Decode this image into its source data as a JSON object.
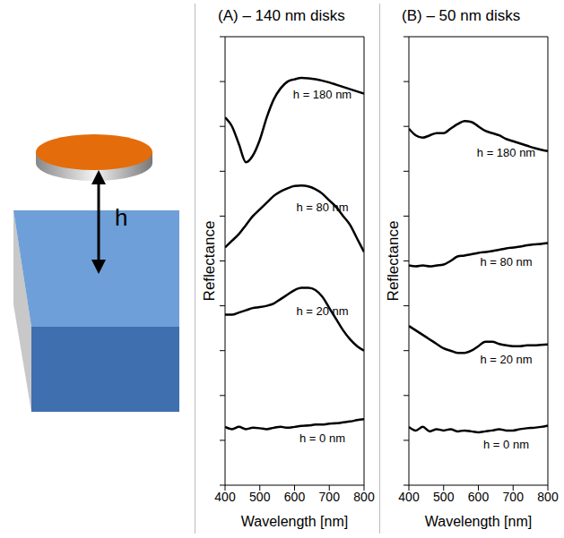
{
  "schematic": {
    "label": "h"
  },
  "chart_data": [
    {
      "type": "line",
      "title": "(A) – 140 nm disks",
      "x_label": "Wavelength [nm]",
      "y_label": "Reflectance",
      "x": [
        400,
        420,
        440,
        460,
        480,
        500,
        520,
        540,
        560,
        580,
        600,
        620,
        640,
        660,
        680,
        700,
        720,
        740,
        760,
        780,
        800
      ],
      "series": [
        {
          "name": "h = 180 nm",
          "color": "#000000",
          "values": [
            8.2,
            8.0,
            7.6,
            7.2,
            7.35,
            7.7,
            8.2,
            8.6,
            8.85,
            9.0,
            9.05,
            9.08,
            9.07,
            9.05,
            9.02,
            8.98,
            8.93,
            8.88,
            8.83,
            8.78,
            8.73
          ]
        },
        {
          "name": "h = 80 nm",
          "color": "#000000",
          "values": [
            5.3,
            5.45,
            5.6,
            5.8,
            6.0,
            6.15,
            6.3,
            6.45,
            6.55,
            6.62,
            6.67,
            6.68,
            6.66,
            6.6,
            6.5,
            6.35,
            6.2,
            6.0,
            5.8,
            5.5,
            5.2
          ]
        },
        {
          "name": "h = 20 nm",
          "color": "#000000",
          "values": [
            3.8,
            3.8,
            3.85,
            3.9,
            3.95,
            3.97,
            4.0,
            4.05,
            4.15,
            4.25,
            4.35,
            4.4,
            4.4,
            4.35,
            4.2,
            3.95,
            3.7,
            3.45,
            3.25,
            3.1,
            3.0
          ]
        },
        {
          "name": "h = 0 nm",
          "color": "#000000",
          "values": [
            1.3,
            1.25,
            1.3,
            1.25,
            1.28,
            1.27,
            1.25,
            1.28,
            1.3,
            1.28,
            1.3,
            1.32,
            1.33,
            1.35,
            1.35,
            1.37,
            1.38,
            1.4,
            1.42,
            1.45,
            1.47
          ]
        }
      ],
      "xlim": [
        400,
        800
      ],
      "xticks": [
        400,
        500,
        600,
        700,
        800
      ],
      "ylim": [
        0,
        10
      ],
      "yticks": [
        0,
        1,
        2,
        3,
        4,
        5,
        6,
        7,
        8,
        9,
        10
      ],
      "tick_labels": "x"
    },
    {
      "type": "line",
      "title": "(B) – 50 nm disks",
      "x_label": "Wavelength [nm]",
      "y_label": "Reflectance",
      "x": [
        400,
        420,
        440,
        460,
        480,
        500,
        520,
        540,
        560,
        580,
        600,
        620,
        640,
        660,
        680,
        700,
        720,
        740,
        760,
        780,
        800
      ],
      "series": [
        {
          "name": "h = 180 nm",
          "color": "#000000",
          "values": [
            7.95,
            7.8,
            7.75,
            7.8,
            7.85,
            7.85,
            7.95,
            8.05,
            8.12,
            8.1,
            8.0,
            7.9,
            7.85,
            7.8,
            7.72,
            7.67,
            7.62,
            7.57,
            7.52,
            7.48,
            7.45
          ]
        },
        {
          "name": "h = 80 nm",
          "color": "#000000",
          "values": [
            4.9,
            4.88,
            4.9,
            4.88,
            4.9,
            4.92,
            5.0,
            5.1,
            5.12,
            5.15,
            5.18,
            5.2,
            5.22,
            5.25,
            5.28,
            5.3,
            5.32,
            5.35,
            5.37,
            5.38,
            5.4
          ]
        },
        {
          "name": "h = 20 nm",
          "color": "#000000",
          "values": [
            3.55,
            3.45,
            3.35,
            3.25,
            3.15,
            3.05,
            3.0,
            2.95,
            2.95,
            3.0,
            3.1,
            3.2,
            3.2,
            3.15,
            3.12,
            3.1,
            3.1,
            3.12,
            3.12,
            3.13,
            3.14
          ]
        },
        {
          "name": "h = 0 nm",
          "color": "#000000",
          "values": [
            1.3,
            1.22,
            1.3,
            1.2,
            1.25,
            1.22,
            1.25,
            1.2,
            1.22,
            1.2,
            1.18,
            1.2,
            1.22,
            1.25,
            1.22,
            1.22,
            1.25,
            1.27,
            1.28,
            1.3,
            1.33
          ]
        }
      ],
      "xlim": [
        400,
        800
      ],
      "xticks": [
        400,
        500,
        600,
        700,
        800
      ],
      "ylim": [
        0,
        10
      ],
      "yticks": [
        0,
        1,
        2,
        3,
        4,
        5,
        6,
        7,
        8,
        9,
        10
      ],
      "tick_labels": "x"
    }
  ]
}
